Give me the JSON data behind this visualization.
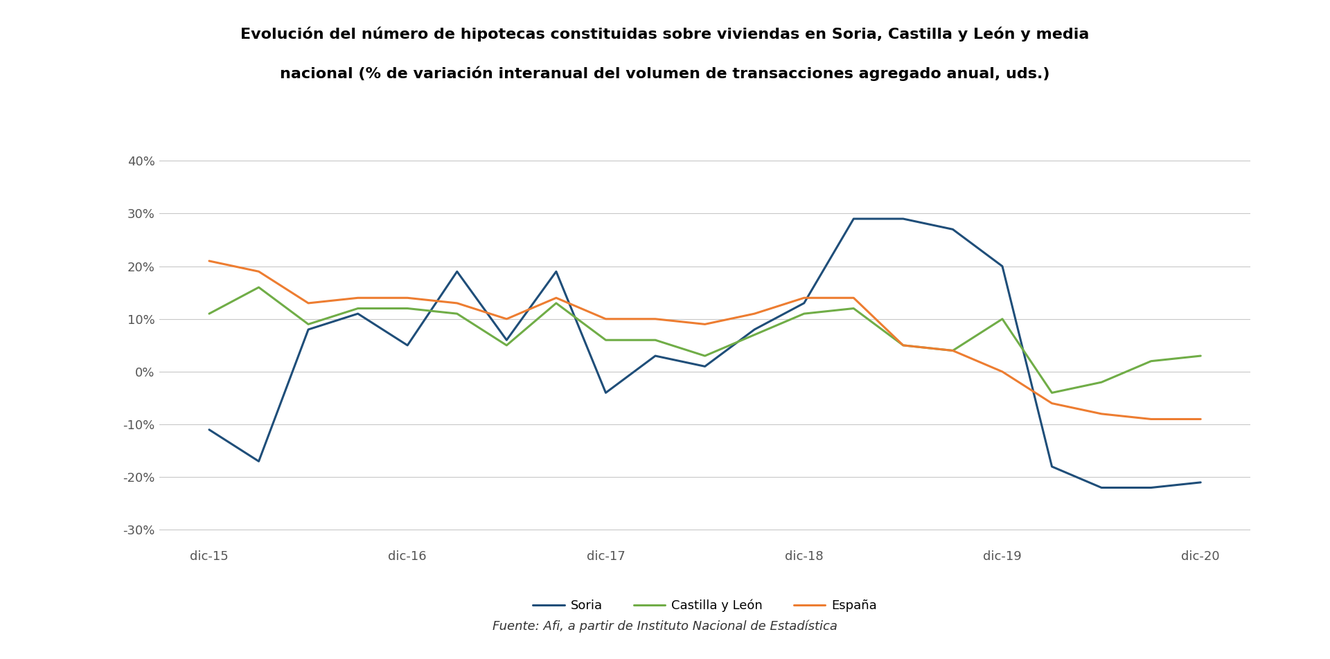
{
  "title_line1": "Evolución del número de hipotecas constituidas sobre viviendas en Soria, Castilla y León y media",
  "title_line2": "nacional (% de variación interanual del volumen de transacciones agregado anual, uds.)",
  "source": "Fuente: Afi, a partir de Instituto Nacional de Estadística",
  "xtick_labels": [
    "dic-15",
    "dic-16",
    "dic-17",
    "dic-18",
    "dic-19",
    "dic-20"
  ],
  "xtick_positions": [
    0,
    4,
    8,
    12,
    16,
    20
  ],
  "ylim": [
    -32,
    43
  ],
  "ytick_values": [
    -30,
    -20,
    -10,
    0,
    10,
    20,
    30,
    40
  ],
  "series": {
    "Soria": {
      "color": "#1f4e79",
      "linewidth": 2.2,
      "x": [
        0,
        1,
        2,
        3,
        4,
        5,
        6,
        7,
        8,
        9,
        10,
        11,
        12,
        13,
        14,
        15,
        16,
        17,
        18,
        19,
        20
      ],
      "y": [
        -11,
        -17,
        8,
        11,
        5,
        19,
        6,
        19,
        -4,
        3,
        1,
        8,
        13,
        29,
        29,
        27,
        20,
        -18,
        -22,
        -22,
        -21
      ]
    },
    "Castilla y León": {
      "color": "#70ad47",
      "linewidth": 2.2,
      "x": [
        0,
        1,
        2,
        3,
        4,
        5,
        6,
        7,
        8,
        9,
        10,
        11,
        12,
        13,
        14,
        15,
        16,
        17,
        18,
        19,
        20
      ],
      "y": [
        11,
        16,
        9,
        12,
        12,
        11,
        5,
        13,
        6,
        6,
        3,
        7,
        11,
        12,
        5,
        4,
        10,
        -4,
        -2,
        2,
        3
      ]
    },
    "España": {
      "color": "#ed7d31",
      "linewidth": 2.2,
      "x": [
        0,
        1,
        2,
        3,
        4,
        5,
        6,
        7,
        8,
        9,
        10,
        11,
        12,
        13,
        14,
        15,
        16,
        17,
        18,
        19,
        20
      ],
      "y": [
        21,
        19,
        13,
        14,
        14,
        13,
        10,
        14,
        10,
        10,
        9,
        11,
        14,
        14,
        5,
        4,
        0,
        -6,
        -8,
        -9,
        -9
      ]
    }
  },
  "background_color": "#ffffff",
  "grid_color": "#c8c8c8",
  "title_fontsize": 16,
  "tick_fontsize": 13,
  "legend_fontsize": 13,
  "source_fontsize": 13
}
